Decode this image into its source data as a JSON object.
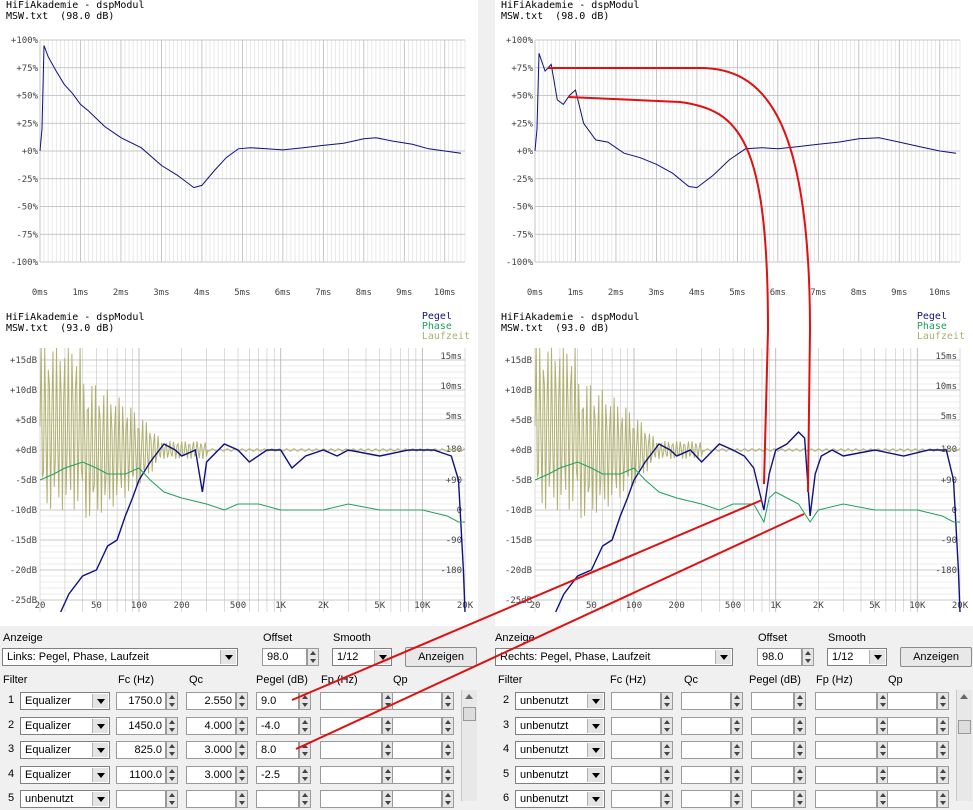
{
  "colors": {
    "pegel": "#101080",
    "phase": "#20a060",
    "laufzeit": "#b0b070",
    "grid": "#b8b8b8",
    "annotation": "#e01010"
  },
  "panels": {
    "impulse_left": {
      "line1": "HiFiAkademie - dspModul",
      "line2": "MSW.txt  (98.0 dB)"
    },
    "impulse_right": {
      "line1": "HiFiAkademie - dspModul",
      "line2": "MSW.txt  (98.0 dB)"
    },
    "freq_left": {
      "line1": "HiFiAkademie - dspModul",
      "line2": "MSW.txt  (93.0 dB)"
    },
    "freq_right": {
      "line1": "HiFiAkademie - dspModul",
      "line2": "MSW.txt  (93.0 dB)"
    }
  },
  "legend": {
    "pegel": "Pegel",
    "phase": "Phase",
    "laufzeit": "Laufzeit"
  },
  "chart_data": [
    {
      "type": "line",
      "name": "impulse_left",
      "ylabel_ticks": [
        "+100%",
        "+75%",
        "+50%",
        "+25%",
        "+0%",
        "-25%",
        "-50%",
        "-75%",
        "-100%"
      ],
      "xticks": [
        "0ms",
        "1ms",
        "2ms",
        "3ms",
        "4ms",
        "5ms",
        "6ms",
        "7ms",
        "8ms",
        "9ms",
        "10ms"
      ],
      "xlim": [
        0,
        10.5
      ],
      "ylim": [
        -100,
        100
      ],
      "x": [
        0,
        0.05,
        0.1,
        0.2,
        0.4,
        0.6,
        0.8,
        1.0,
        1.2,
        1.6,
        2.0,
        2.5,
        3.0,
        3.4,
        3.8,
        4.0,
        4.3,
        4.6,
        4.9,
        5.2,
        5.6,
        6.0,
        6.5,
        7.0,
        7.5,
        8.0,
        8.3,
        8.7,
        9.2,
        9.6,
        10.0,
        10.4
      ],
      "y": [
        0,
        20,
        95,
        85,
        72,
        60,
        52,
        42,
        36,
        22,
        12,
        3,
        -13,
        -22,
        -33,
        -31,
        -18,
        -6,
        2,
        3,
        2,
        1,
        3,
        5,
        7,
        11,
        12,
        9,
        6,
        2,
        0,
        -2
      ]
    },
    {
      "type": "line",
      "name": "impulse_right",
      "ylabel_ticks": [
        "+100%",
        "+75%",
        "+50%",
        "+25%",
        "+0%",
        "-25%",
        "-50%",
        "-75%",
        "-100%"
      ],
      "xticks": [
        "0ms",
        "1ms",
        "2ms",
        "3ms",
        "4ms",
        "5ms",
        "6ms",
        "7ms",
        "8ms",
        "9ms",
        "10ms"
      ],
      "xlim": [
        0,
        10.5
      ],
      "ylim": [
        -100,
        100
      ],
      "x": [
        0,
        0.05,
        0.1,
        0.25,
        0.4,
        0.55,
        0.7,
        0.85,
        1.0,
        1.2,
        1.5,
        1.8,
        2.2,
        2.6,
        3.0,
        3.4,
        3.8,
        4.0,
        4.4,
        4.8,
        5.2,
        5.6,
        6.0,
        6.5,
        7.0,
        7.5,
        8.0,
        8.5,
        9.0,
        9.5,
        10.0,
        10.4
      ],
      "y": [
        0,
        20,
        88,
        72,
        78,
        46,
        42,
        50,
        55,
        25,
        10,
        8,
        -2,
        -6,
        -12,
        -20,
        -32,
        -33,
        -22,
        -8,
        2,
        3,
        2,
        4,
        6,
        8,
        11,
        12,
        8,
        4,
        0,
        -2
      ]
    },
    {
      "type": "line",
      "name": "freq_left",
      "yticks_db": [
        "+15dB",
        "+10dB",
        "+5dB",
        "+0dB",
        "-5dB",
        "-10dB",
        "-15dB",
        "-20dB",
        "-25dB"
      ],
      "xticks": [
        "20",
        "50",
        "100",
        "200",
        "500",
        "1K",
        "2K",
        "5K",
        "10K",
        "20K"
      ],
      "right_ticks_ms": [
        "15ms",
        "10ms",
        "5ms"
      ],
      "right_ticks_phase": [
        "180",
        "+90",
        "0",
        "-90",
        "-180"
      ],
      "ylim": [
        -27,
        17
      ],
      "xlim": [
        20,
        20000
      ],
      "series": [
        {
          "name": "Pegel",
          "x": [
            28,
            32,
            40,
            50,
            60,
            70,
            80,
            90,
            100,
            120,
            150,
            180,
            200,
            250,
            280,
            300,
            400,
            500,
            600,
            800,
            1000,
            1200,
            1500,
            2000,
            2500,
            3000,
            5000,
            8000,
            12000,
            16000,
            18000,
            19500,
            20000
          ],
          "y": [
            -27,
            -24,
            -21,
            -20,
            -16,
            -15,
            -11,
            -8,
            -5,
            -2,
            1,
            0,
            -1,
            0,
            -7,
            -2,
            1,
            0,
            -2,
            0,
            0,
            -3,
            -1,
            0,
            -1,
            0,
            -1,
            0,
            0,
            -1,
            -5,
            -20,
            -27
          ]
        },
        {
          "name": "Phase",
          "x": [
            20,
            25,
            30,
            40,
            50,
            60,
            80,
            100,
            120,
            150,
            200,
            300,
            400,
            500,
            700,
            1000,
            2000,
            3000,
            5000,
            10000,
            15000,
            18000,
            20000
          ],
          "y": [
            -5,
            -4,
            -3,
            -2,
            -3,
            -4,
            -4,
            -3,
            -5,
            -7,
            -8,
            -9,
            -10,
            -9,
            -9,
            -10,
            -10,
            -9,
            -10,
            -10,
            -11,
            -12,
            -12
          ]
        }
      ]
    },
    {
      "type": "line",
      "name": "freq_right",
      "yticks_db": [
        "+15dB",
        "+10dB",
        "+5dB",
        "+0dB",
        "-5dB",
        "-10dB",
        "-15dB",
        "-20dB",
        "-25dB"
      ],
      "xticks": [
        "20",
        "50",
        "100",
        "200",
        "500",
        "1K",
        "2K",
        "5K",
        "10K",
        "20K"
      ],
      "right_ticks_ms": [
        "15ms",
        "10ms",
        "5ms"
      ],
      "right_ticks_phase": [
        "180",
        "+90",
        "0",
        "-90",
        "-180"
      ],
      "ylim": [
        -27,
        17
      ],
      "xlim": [
        20,
        20000
      ],
      "series": [
        {
          "name": "Pegel",
          "x": [
            28,
            32,
            40,
            50,
            60,
            70,
            80,
            90,
            100,
            120,
            150,
            180,
            200,
            250,
            300,
            400,
            500,
            600,
            700,
            825,
            900,
            1000,
            1200,
            1450,
            1600,
            1750,
            1900,
            2100,
            2500,
            3000,
            5000,
            8000,
            12000,
            16000,
            18000,
            19500,
            20000
          ],
          "y": [
            -27,
            -24,
            -21,
            -20,
            -16,
            -15,
            -11,
            -8,
            -5,
            -2,
            1,
            0,
            -1,
            0,
            -2,
            1,
            0,
            -1,
            -3,
            -10,
            -4,
            0,
            1,
            3,
            2,
            -11,
            -4,
            -1,
            0,
            -1,
            0,
            -1,
            0,
            0,
            -5,
            -20,
            -27
          ]
        },
        {
          "name": "Phase",
          "x": [
            20,
            25,
            30,
            40,
            50,
            60,
            80,
            100,
            120,
            150,
            200,
            300,
            400,
            500,
            700,
            825,
            900,
            1000,
            1200,
            1450,
            1750,
            2000,
            3000,
            5000,
            10000,
            15000,
            18000,
            20000
          ],
          "y": [
            -5,
            -4,
            -3,
            -2,
            -3,
            -4,
            -4,
            -3,
            -5,
            -7,
            -8,
            -9,
            -10,
            -9,
            -9,
            -12,
            -8,
            -7,
            -8,
            -9,
            -12,
            -10,
            -9,
            -10,
            -10,
            -11,
            -12,
            -12
          ]
        }
      ]
    }
  ],
  "left_controls": {
    "anzeige_label": "Anzeige",
    "anzeige_value": "Links: Pegel, Phase, Laufzeit",
    "offset_label": "Offset",
    "offset_value": "98.0",
    "smooth_label": "Smooth",
    "smooth_value": "1/12",
    "show_button": "Anzeigen",
    "headers": {
      "filter": "Filter",
      "fc": "Fc (Hz)",
      "qc": "Qc",
      "pegel": "Pegel (dB)",
      "fp": "Fp (Hz)",
      "qp": "Qp"
    },
    "rows": [
      {
        "num": "1",
        "type": "Equalizer",
        "fc": "1750.0",
        "qc": "2.550",
        "pegel": "9.0"
      },
      {
        "num": "2",
        "type": "Equalizer",
        "fc": "1450.0",
        "qc": "4.000",
        "pegel": "-4.0"
      },
      {
        "num": "3",
        "type": "Equalizer",
        "fc": "825.0",
        "qc": "3.000",
        "pegel": "8.0"
      },
      {
        "num": "4",
        "type": "Equalizer",
        "fc": "1100.0",
        "qc": "3.000",
        "pegel": "-2.5"
      },
      {
        "num": "5",
        "type": "unbenutzt",
        "fc": "",
        "qc": "",
        "pegel": ""
      }
    ]
  },
  "right_controls": {
    "anzeige_label": "Anzeige",
    "anzeige_value": "Rechts: Pegel, Phase, Laufzeit",
    "offset_label": "Offset",
    "offset_value": "98.0",
    "smooth_label": "Smooth",
    "smooth_value": "1/12",
    "show_button": "Anzeigen",
    "headers": {
      "filter": "Filter",
      "fc": "Fc (Hz)",
      "qc": "Qc",
      "pegel": "Pegel (dB)",
      "fp": "Fp (Hz)",
      "qp": "Qp"
    },
    "rows": [
      {
        "num": "2",
        "type": "unbenutzt"
      },
      {
        "num": "3",
        "type": "unbenutzt"
      },
      {
        "num": "4",
        "type": "unbenutzt"
      },
      {
        "num": "5",
        "type": "unbenutzt"
      },
      {
        "num": "6",
        "type": "unbenutzt"
      }
    ]
  }
}
